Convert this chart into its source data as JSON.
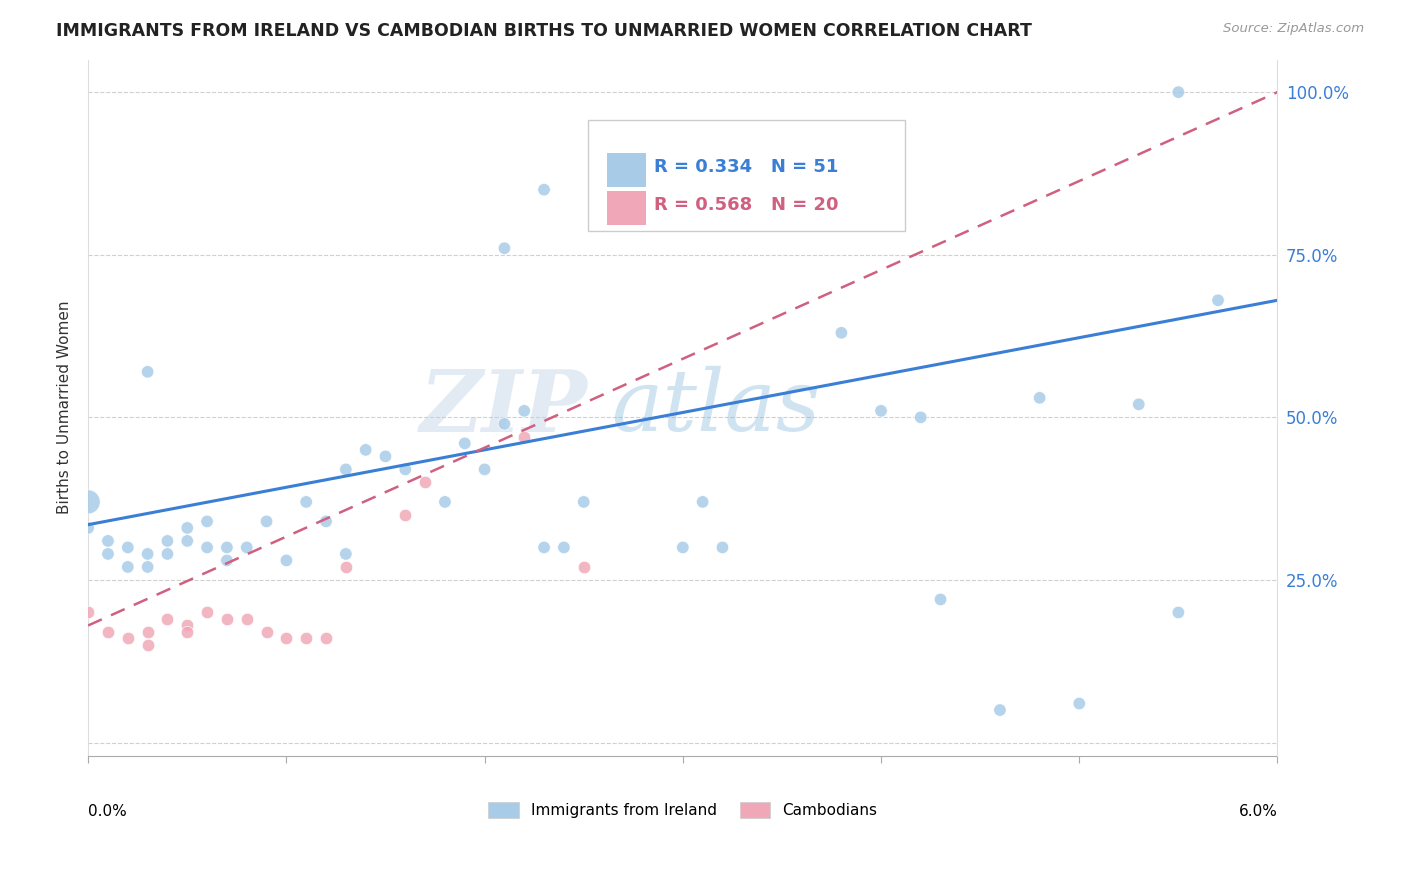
{
  "title": "IMMIGRANTS FROM IRELAND VS CAMBODIAN BIRTHS TO UNMARRIED WOMEN CORRELATION CHART",
  "source": "Source: ZipAtlas.com",
  "ylabel": "Births to Unmarried Women",
  "ytick_vals": [
    0.0,
    0.25,
    0.5,
    0.75,
    1.0
  ],
  "ytick_labels": [
    "",
    "25.0%",
    "50.0%",
    "75.0%",
    "100.0%"
  ],
  "xmin": 0.0,
  "xmax": 0.06,
  "ymin": -0.02,
  "ymax": 1.05,
  "ireland_color": "#a8cce8",
  "cambodian_color": "#f0a8b8",
  "ireland_line_color": "#3a7fd5",
  "cambodian_line_color": "#d06080",
  "ireland_line_x0": 0.0,
  "ireland_line_y0": 0.335,
  "ireland_line_x1": 0.06,
  "ireland_line_y1": 0.68,
  "cambodian_line_x0": 0.0,
  "cambodian_line_y0": 0.18,
  "cambodian_line_x1": 0.06,
  "cambodian_line_y1": 1.0,
  "ireland_scatter_x": [
    0.0,
    0.0,
    0.001,
    0.001,
    0.002,
    0.002,
    0.003,
    0.003,
    0.004,
    0.004,
    0.005,
    0.005,
    0.006,
    0.006,
    0.007,
    0.007,
    0.008,
    0.009,
    0.01,
    0.011,
    0.012,
    0.013,
    0.013,
    0.014,
    0.015,
    0.016,
    0.018,
    0.019,
    0.02,
    0.021,
    0.022,
    0.023,
    0.024,
    0.025,
    0.03,
    0.031,
    0.032,
    0.038,
    0.04,
    0.043,
    0.046,
    0.048,
    0.05,
    0.053,
    0.055,
    0.057,
    0.003,
    0.021,
    0.023,
    0.042,
    0.055
  ],
  "ireland_scatter_y": [
    0.37,
    0.33,
    0.31,
    0.29,
    0.3,
    0.27,
    0.29,
    0.27,
    0.31,
    0.29,
    0.33,
    0.31,
    0.34,
    0.3,
    0.3,
    0.28,
    0.3,
    0.34,
    0.28,
    0.37,
    0.34,
    0.29,
    0.42,
    0.45,
    0.44,
    0.42,
    0.37,
    0.46,
    0.42,
    0.49,
    0.51,
    0.3,
    0.3,
    0.37,
    0.3,
    0.37,
    0.3,
    0.63,
    0.51,
    0.22,
    0.05,
    0.53,
    0.06,
    0.52,
    0.2,
    0.68,
    0.57,
    0.76,
    0.85,
    0.5,
    1.0
  ],
  "ireland_scatter_size": [
    300,
    80,
    80,
    80,
    80,
    80,
    80,
    80,
    80,
    80,
    80,
    80,
    80,
    80,
    80,
    80,
    80,
    80,
    80,
    80,
    80,
    80,
    80,
    80,
    80,
    80,
    80,
    80,
    80,
    80,
    80,
    80,
    80,
    80,
    80,
    80,
    80,
    80,
    80,
    80,
    80,
    80,
    80,
    80,
    80,
    80,
    80,
    80,
    80,
    80,
    80
  ],
  "cambodian_scatter_x": [
    0.0,
    0.001,
    0.002,
    0.003,
    0.003,
    0.004,
    0.005,
    0.005,
    0.006,
    0.007,
    0.008,
    0.009,
    0.01,
    0.011,
    0.012,
    0.013,
    0.016,
    0.017,
    0.022,
    0.025
  ],
  "cambodian_scatter_y": [
    0.2,
    0.17,
    0.16,
    0.17,
    0.15,
    0.19,
    0.18,
    0.17,
    0.2,
    0.19,
    0.19,
    0.17,
    0.16,
    0.16,
    0.16,
    0.27,
    0.35,
    0.4,
    0.47,
    0.27
  ],
  "legend_r1": "R = 0.334",
  "legend_n1": "N = 51",
  "legend_r2": "R = 0.568",
  "legend_n2": "N = 20"
}
